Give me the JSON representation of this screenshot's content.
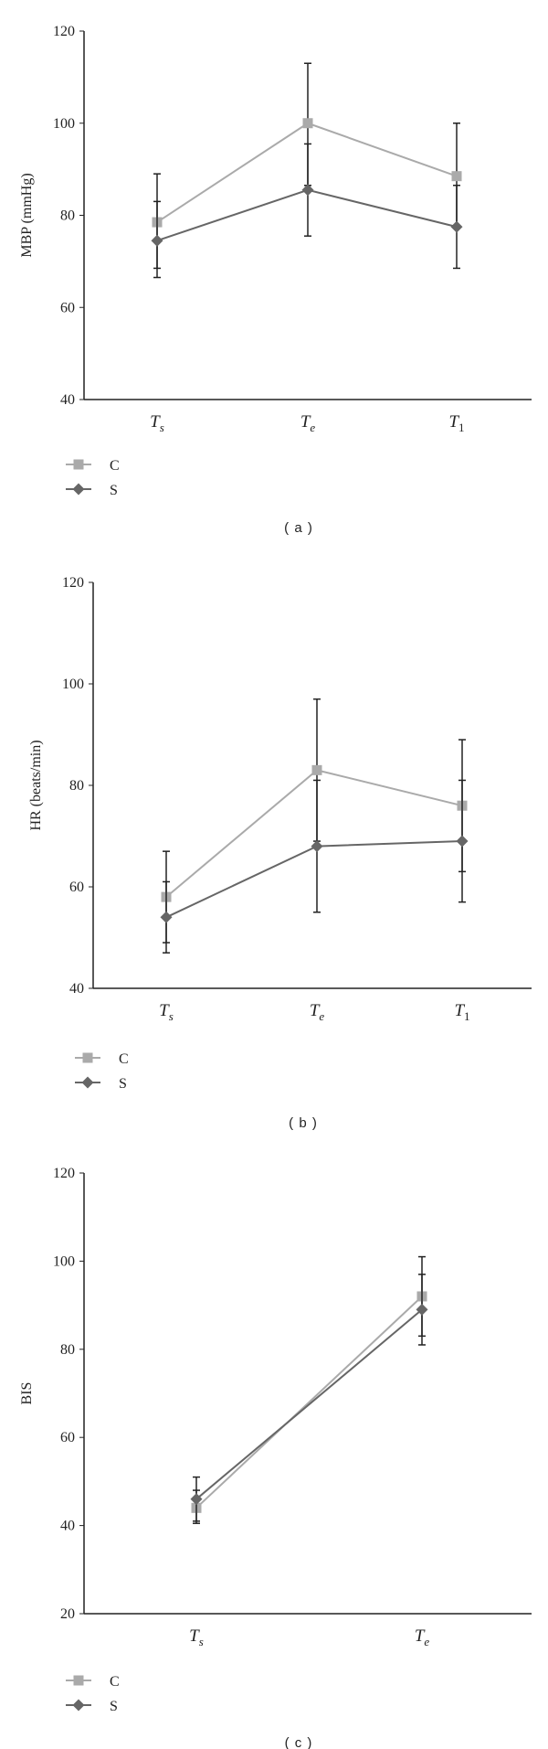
{
  "series_colors": {
    "C": "#aaaaaa",
    "S": "#666666"
  },
  "chart_data": [
    {
      "type": "line",
      "caption": "(a)",
      "ylabel": "MBP (mmHg)",
      "xlabel": "",
      "ylim": [
        40,
        120
      ],
      "yticks": [
        40,
        60,
        80,
        100,
        120
      ],
      "categories": [
        {
          "main": "T",
          "sub": "s",
          "sub_italic": true
        },
        {
          "main": "T",
          "sub": "e",
          "sub_italic": true
        },
        {
          "main": "T",
          "sub": "1",
          "sub_italic": false
        }
      ],
      "series": [
        {
          "name": "C",
          "marker": "square",
          "values": [
            78.5,
            100,
            88.5
          ],
          "err_low": [
            68.5,
            86.5,
            77.5
          ],
          "err_high": [
            89,
            113,
            100
          ]
        },
        {
          "name": "S",
          "marker": "diamond",
          "values": [
            74.5,
            85.5,
            77.5
          ],
          "err_low": [
            66.5,
            75.5,
            68.5
          ],
          "err_high": [
            83,
            95.5,
            86.5
          ]
        }
      ],
      "legend_position": "bottom-left"
    },
    {
      "type": "line",
      "caption": "(b)",
      "ylabel": "HR (beats/min)",
      "xlabel": "",
      "ylim": [
        40,
        120
      ],
      "yticks": [
        40,
        60,
        80,
        100,
        120
      ],
      "categories": [
        {
          "main": "T",
          "sub": "s",
          "sub_italic": true
        },
        {
          "main": "T",
          "sub": "e",
          "sub_italic": true
        },
        {
          "main": "T",
          "sub": "1",
          "sub_italic": false
        }
      ],
      "series": [
        {
          "name": "C",
          "marker": "square",
          "values": [
            58,
            83,
            76
          ],
          "err_low": [
            49,
            69,
            63
          ],
          "err_high": [
            67,
            97,
            89
          ]
        },
        {
          "name": "S",
          "marker": "diamond",
          "values": [
            54,
            68,
            69
          ],
          "err_low": [
            47,
            55,
            57
          ],
          "err_high": [
            61,
            81,
            81
          ]
        }
      ],
      "legend_position": "bottom-left"
    },
    {
      "type": "line",
      "caption": "(c)",
      "ylabel": "BIS",
      "xlabel": "",
      "ylim": [
        20,
        120
      ],
      "yticks": [
        20,
        40,
        60,
        80,
        100,
        120
      ],
      "categories": [
        {
          "main": "T",
          "sub": "s",
          "sub_italic": true
        },
        {
          "main": "T",
          "sub": "e",
          "sub_italic": true
        }
      ],
      "series": [
        {
          "name": "C",
          "marker": "square",
          "values": [
            44,
            92
          ],
          "err_low": [
            40.5,
            83
          ],
          "err_high": [
            48,
            101
          ]
        },
        {
          "name": "S",
          "marker": "diamond",
          "values": [
            46,
            89
          ],
          "err_low": [
            41,
            81
          ],
          "err_high": [
            51,
            97
          ]
        }
      ],
      "legend_position": "bottom-left"
    }
  ]
}
